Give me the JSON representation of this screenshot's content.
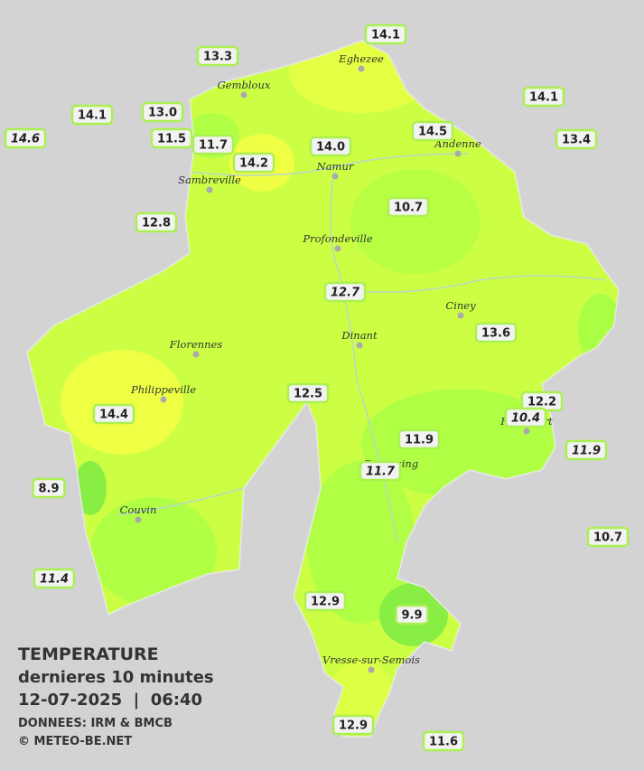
{
  "header": {
    "title": "TEMPERATURE",
    "subtitle": "dernieres 10 minutes",
    "datetime": "12-07-2025  |  06:40",
    "source": "DONNEES: IRM & BMCB",
    "credit": "© METEO-BE.NET"
  },
  "cities": [
    "Eghezee",
    "Gembloux",
    "Andenne",
    "Namur",
    "Sambreville",
    "Profondeville",
    "Ciney",
    "Dinant",
    "Florennes",
    "Philippeville",
    "Rochefort",
    "Beauraing",
    "Couvin",
    "Vresse-sur-Semois"
  ],
  "stations": [
    {
      "value": "14.1",
      "italic": false
    },
    {
      "value": "13.3",
      "italic": false
    },
    {
      "value": "14.1",
      "italic": false
    },
    {
      "value": "14.1",
      "italic": false
    },
    {
      "value": "13.0",
      "italic": false
    },
    {
      "value": "14.6",
      "italic": true
    },
    {
      "value": "11.5",
      "italic": false
    },
    {
      "value": "11.7",
      "italic": false
    },
    {
      "value": "14.2",
      "italic": false
    },
    {
      "value": "14.0",
      "italic": false
    },
    {
      "value": "14.5",
      "italic": false
    },
    {
      "value": "13.4",
      "italic": false
    },
    {
      "value": "12.8",
      "italic": false
    },
    {
      "value": "10.7",
      "italic": false
    },
    {
      "value": "12.7",
      "italic": true
    },
    {
      "value": "13.6",
      "italic": false
    },
    {
      "value": "12.5",
      "italic": false
    },
    {
      "value": "14.4",
      "italic": false
    },
    {
      "value": "12.2",
      "italic": false
    },
    {
      "value": "10.4",
      "italic": true
    },
    {
      "value": "11.9",
      "italic": false
    },
    {
      "value": "11.9",
      "italic": true
    },
    {
      "value": "11.7",
      "italic": true
    },
    {
      "value": "8.9",
      "italic": false
    },
    {
      "value": "10.7",
      "italic": false
    },
    {
      "value": "11.4",
      "italic": true
    },
    {
      "value": "12.9",
      "italic": false
    },
    {
      "value": "9.9",
      "italic": false
    },
    {
      "value": "12.9",
      "italic": false
    },
    {
      "value": "11.6",
      "italic": false
    }
  ]
}
